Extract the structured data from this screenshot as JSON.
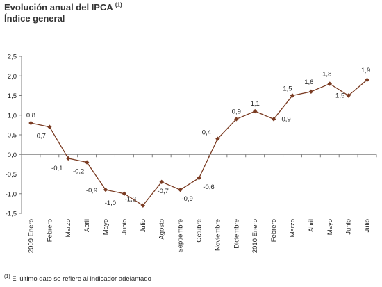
{
  "header": {
    "title": "Evolución anual del IPCA",
    "title_note": "(1)",
    "subtitle": "Índice general"
  },
  "footnote": {
    "marker": "(1)",
    "text": "El último dato se refiere al indicador adelantado"
  },
  "chart_data": {
    "type": "line",
    "title": "Evolución anual del IPCA",
    "subtitle": "Índice general",
    "categories": [
      "2009 Enero",
      "Febrero",
      "Marzo",
      "Abril",
      "Mayo",
      "Junio",
      "Julio",
      "Agosto",
      "Septiembre",
      "Octubre",
      "Noviembre",
      "Diciembre",
      "2010 Enero",
      "Febrero",
      "Marzo",
      "Abril",
      "Mayo",
      "Junio",
      "Julio"
    ],
    "series": [
      {
        "values": [
          0.8,
          0.7,
          -0.1,
          -0.2,
          -0.9,
          -1.0,
          -1.3,
          -0.7,
          -0.9,
          -0.6,
          0.4,
          0.9,
          1.1,
          0.9,
          1.5,
          1.6,
          1.8,
          1.5,
          1.9
        ],
        "labels": [
          "0,8",
          "0,7",
          "-0,1",
          "-0,2",
          "-0,9",
          "-1,0",
          "-1,3",
          "-0,7",
          "-0,9",
          "-0,6",
          "0,4",
          "0,9",
          "1,1",
          "0,9",
          "1,5",
          "1,6",
          "1,8",
          "1,5",
          "1,9"
        ],
        "color": "#7a3b22"
      }
    ],
    "y_ticks": [
      "2,5",
      "2,0",
      "1,5",
      "1,0",
      "0,5",
      "0,0",
      "-0,5",
      "-1,0",
      "-1,5"
    ],
    "y_tick_values": [
      2.5,
      2.0,
      1.5,
      1.0,
      0.5,
      0.0,
      -0.5,
      -1.0,
      -1.5
    ],
    "ylim": [
      -1.5,
      2.5
    ],
    "xlabel": "",
    "ylabel": "",
    "grid": false,
    "legend": "none",
    "colors": {
      "line": "#7a3b22",
      "marker": "#7a3b22",
      "axis": "#7f7f7f"
    }
  }
}
